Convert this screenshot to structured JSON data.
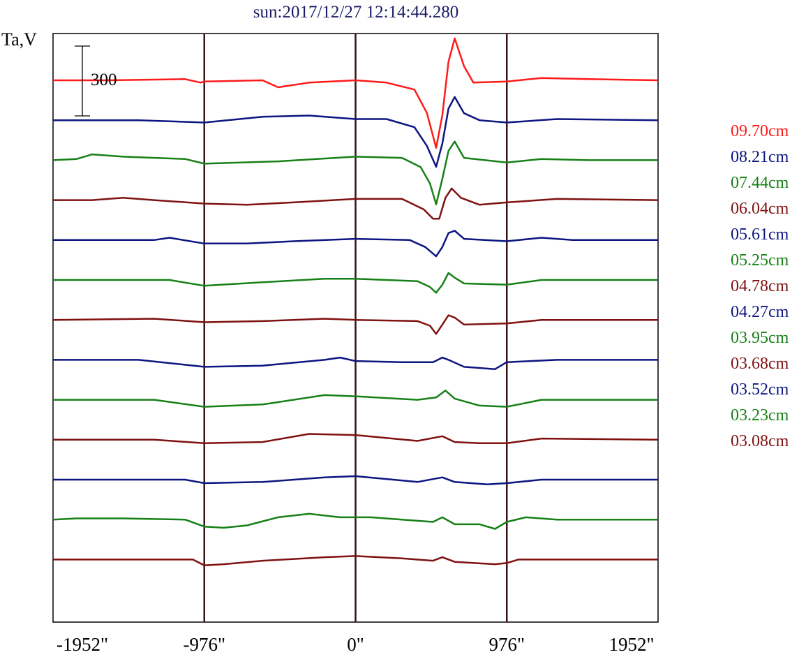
{
  "chart_data": {
    "type": "line",
    "title": "sun:2017/12/27 12:14:44.280",
    "ylabel": "Ta,V",
    "x_ticks": [
      "-1952\"",
      "-976\"",
      "0\"",
      "976\"",
      "1952\""
    ],
    "xlim": [
      -1952,
      1952
    ],
    "vertical_lines_at": [
      -976,
      0,
      976
    ],
    "scale_bar_label": "300",
    "scale_bar_value": 300,
    "series": [
      {
        "name": "09.70cm",
        "color": "#ff1a1a",
        "values": [
          {
            "x": -1952,
            "y": 0
          },
          {
            "x": -1600,
            "y": 0
          },
          {
            "x": -1100,
            "y": 5
          },
          {
            "x": -1000,
            "y": -10
          },
          {
            "x": -976,
            "y": -5
          },
          {
            "x": -600,
            "y": 0
          },
          {
            "x": -500,
            "y": -30
          },
          {
            "x": -300,
            "y": -10
          },
          {
            "x": 0,
            "y": 0
          },
          {
            "x": 200,
            "y": -10
          },
          {
            "x": 380,
            "y": -40
          },
          {
            "x": 460,
            "y": -140
          },
          {
            "x": 520,
            "y": -290
          },
          {
            "x": 560,
            "y": -150
          },
          {
            "x": 600,
            "y": 80
          },
          {
            "x": 640,
            "y": 180
          },
          {
            "x": 700,
            "y": 60
          },
          {
            "x": 760,
            "y": -10
          },
          {
            "x": 976,
            "y": -5
          },
          {
            "x": 1200,
            "y": 10
          },
          {
            "x": 1500,
            "y": 5
          },
          {
            "x": 1952,
            "y": 0
          }
        ]
      },
      {
        "name": "08.21cm",
        "color": "#0d1580",
        "values": [
          {
            "x": -1952,
            "y": 0
          },
          {
            "x": -1400,
            "y": 0
          },
          {
            "x": -976,
            "y": -10
          },
          {
            "x": -600,
            "y": 15
          },
          {
            "x": -300,
            "y": 20
          },
          {
            "x": 0,
            "y": 5
          },
          {
            "x": 200,
            "y": 5
          },
          {
            "x": 380,
            "y": -30
          },
          {
            "x": 460,
            "y": -110
          },
          {
            "x": 520,
            "y": -200
          },
          {
            "x": 560,
            "y": -100
          },
          {
            "x": 600,
            "y": 50
          },
          {
            "x": 640,
            "y": 100
          },
          {
            "x": 700,
            "y": 30
          },
          {
            "x": 800,
            "y": 0
          },
          {
            "x": 976,
            "y": -10
          },
          {
            "x": 1300,
            "y": 5
          },
          {
            "x": 1952,
            "y": 0
          }
        ]
      },
      {
        "name": "07.44cm",
        "color": "#178017",
        "values": [
          {
            "x": -1952,
            "y": 0
          },
          {
            "x": -1800,
            "y": 5
          },
          {
            "x": -1700,
            "y": 25
          },
          {
            "x": -1500,
            "y": 15
          },
          {
            "x": -1100,
            "y": 5
          },
          {
            "x": -976,
            "y": -15
          },
          {
            "x": -500,
            "y": -5
          },
          {
            "x": 0,
            "y": 15
          },
          {
            "x": 300,
            "y": 10
          },
          {
            "x": 420,
            "y": -30
          },
          {
            "x": 480,
            "y": -100
          },
          {
            "x": 520,
            "y": -190
          },
          {
            "x": 560,
            "y": -80
          },
          {
            "x": 600,
            "y": 40
          },
          {
            "x": 640,
            "y": 80
          },
          {
            "x": 700,
            "y": 10
          },
          {
            "x": 976,
            "y": -10
          },
          {
            "x": 1200,
            "y": 5
          },
          {
            "x": 1500,
            "y": 0
          },
          {
            "x": 1952,
            "y": 0
          }
        ]
      },
      {
        "name": "06.04cm",
        "color": "#7f1111",
        "values": [
          {
            "x": -1952,
            "y": 0
          },
          {
            "x": -1700,
            "y": 0
          },
          {
            "x": -1500,
            "y": 10
          },
          {
            "x": -1300,
            "y": 0
          },
          {
            "x": -976,
            "y": -15
          },
          {
            "x": -700,
            "y": -20
          },
          {
            "x": -400,
            "y": -10
          },
          {
            "x": 0,
            "y": 5
          },
          {
            "x": 300,
            "y": 5
          },
          {
            "x": 440,
            "y": -40
          },
          {
            "x": 500,
            "y": -80
          },
          {
            "x": 540,
            "y": -80
          },
          {
            "x": 580,
            "y": 10
          },
          {
            "x": 620,
            "y": 50
          },
          {
            "x": 680,
            "y": 10
          },
          {
            "x": 800,
            "y": -20
          },
          {
            "x": 976,
            "y": -10
          },
          {
            "x": 1300,
            "y": 5
          },
          {
            "x": 1952,
            "y": 0
          }
        ]
      },
      {
        "name": "05.61cm",
        "color": "#0d1580",
        "values": [
          {
            "x": -1952,
            "y": 0
          },
          {
            "x": -1300,
            "y": 0
          },
          {
            "x": -1200,
            "y": 10
          },
          {
            "x": -976,
            "y": -15
          },
          {
            "x": -700,
            "y": -15
          },
          {
            "x": -400,
            "y": -5
          },
          {
            "x": 0,
            "y": 5
          },
          {
            "x": 350,
            "y": 0
          },
          {
            "x": 450,
            "y": -30
          },
          {
            "x": 520,
            "y": -70
          },
          {
            "x": 560,
            "y": -30
          },
          {
            "x": 600,
            "y": 30
          },
          {
            "x": 640,
            "y": 40
          },
          {
            "x": 700,
            "y": 5
          },
          {
            "x": 976,
            "y": -5
          },
          {
            "x": 1200,
            "y": 10
          },
          {
            "x": 1400,
            "y": 0
          },
          {
            "x": 1952,
            "y": 0
          }
        ]
      },
      {
        "name": "05.25cm",
        "color": "#178017",
        "values": [
          {
            "x": -1952,
            "y": 0
          },
          {
            "x": -1200,
            "y": 0
          },
          {
            "x": -976,
            "y": -25
          },
          {
            "x": -600,
            "y": -10
          },
          {
            "x": -200,
            "y": 5
          },
          {
            "x": 0,
            "y": 5
          },
          {
            "x": 400,
            "y": -5
          },
          {
            "x": 480,
            "y": -30
          },
          {
            "x": 520,
            "y": -55
          },
          {
            "x": 560,
            "y": -20
          },
          {
            "x": 600,
            "y": 30
          },
          {
            "x": 640,
            "y": 10
          },
          {
            "x": 700,
            "y": -15
          },
          {
            "x": 976,
            "y": -20
          },
          {
            "x": 1200,
            "y": 0
          },
          {
            "x": 1952,
            "y": 0
          }
        ]
      },
      {
        "name": "04.78cm",
        "color": "#7f1111",
        "values": [
          {
            "x": -1952,
            "y": 0
          },
          {
            "x": -1300,
            "y": 5
          },
          {
            "x": -976,
            "y": -10
          },
          {
            "x": -600,
            "y": -5
          },
          {
            "x": -200,
            "y": 5
          },
          {
            "x": 0,
            "y": 0
          },
          {
            "x": 400,
            "y": -5
          },
          {
            "x": 480,
            "y": -25
          },
          {
            "x": 520,
            "y": -60
          },
          {
            "x": 560,
            "y": -20
          },
          {
            "x": 600,
            "y": 20
          },
          {
            "x": 640,
            "y": 10
          },
          {
            "x": 700,
            "y": -20
          },
          {
            "x": 976,
            "y": -15
          },
          {
            "x": 1200,
            "y": 0
          },
          {
            "x": 1952,
            "y": 0
          }
        ]
      },
      {
        "name": "04.27cm",
        "color": "#0d1580",
        "values": [
          {
            "x": -1952,
            "y": 0
          },
          {
            "x": -1400,
            "y": 0
          },
          {
            "x": -976,
            "y": -30
          },
          {
            "x": -600,
            "y": -25
          },
          {
            "x": -200,
            "y": 0
          },
          {
            "x": -100,
            "y": 10
          },
          {
            "x": 0,
            "y": -5
          },
          {
            "x": 300,
            "y": -10
          },
          {
            "x": 500,
            "y": -10
          },
          {
            "x": 560,
            "y": 10
          },
          {
            "x": 600,
            "y": 0
          },
          {
            "x": 700,
            "y": -30
          },
          {
            "x": 900,
            "y": -40
          },
          {
            "x": 976,
            "y": -10
          },
          {
            "x": 1300,
            "y": 0
          },
          {
            "x": 1952,
            "y": 0
          }
        ]
      },
      {
        "name": "03.95cm",
        "color": "#178017",
        "values": [
          {
            "x": -1952,
            "y": 0
          },
          {
            "x": -1300,
            "y": 0
          },
          {
            "x": -976,
            "y": -30
          },
          {
            "x": -600,
            "y": -20
          },
          {
            "x": -200,
            "y": 20
          },
          {
            "x": 0,
            "y": 15
          },
          {
            "x": 400,
            "y": 0
          },
          {
            "x": 520,
            "y": 10
          },
          {
            "x": 580,
            "y": 40
          },
          {
            "x": 640,
            "y": 5
          },
          {
            "x": 800,
            "y": -25
          },
          {
            "x": 976,
            "y": -30
          },
          {
            "x": 1200,
            "y": 0
          },
          {
            "x": 1952,
            "y": 0
          }
        ]
      },
      {
        "name": "03.68cm",
        "color": "#7f1111",
        "values": [
          {
            "x": -1952,
            "y": 0
          },
          {
            "x": -1300,
            "y": 0
          },
          {
            "x": -976,
            "y": -15
          },
          {
            "x": -600,
            "y": -10
          },
          {
            "x": -300,
            "y": 25
          },
          {
            "x": 0,
            "y": 20
          },
          {
            "x": 400,
            "y": -5
          },
          {
            "x": 560,
            "y": 15
          },
          {
            "x": 640,
            "y": -10
          },
          {
            "x": 800,
            "y": -15
          },
          {
            "x": 976,
            "y": -15
          },
          {
            "x": 1200,
            "y": 5
          },
          {
            "x": 1952,
            "y": 0
          }
        ]
      },
      {
        "name": "03.52cm",
        "color": "#0d1580",
        "values": [
          {
            "x": -1952,
            "y": 0
          },
          {
            "x": -1100,
            "y": 0
          },
          {
            "x": -976,
            "y": -15
          },
          {
            "x": -600,
            "y": -10
          },
          {
            "x": -200,
            "y": 10
          },
          {
            "x": 0,
            "y": 15
          },
          {
            "x": 400,
            "y": -10
          },
          {
            "x": 560,
            "y": 10
          },
          {
            "x": 640,
            "y": -10
          },
          {
            "x": 850,
            "y": -20
          },
          {
            "x": 976,
            "y": -15
          },
          {
            "x": 1200,
            "y": 0
          },
          {
            "x": 1952,
            "y": 0
          }
        ]
      },
      {
        "name": "03.23cm",
        "color": "#178017",
        "values": [
          {
            "x": -1952,
            "y": 0
          },
          {
            "x": -1800,
            "y": 5
          },
          {
            "x": -1500,
            "y": 5
          },
          {
            "x": -1100,
            "y": 0
          },
          {
            "x": -976,
            "y": -30
          },
          {
            "x": -850,
            "y": -35
          },
          {
            "x": -700,
            "y": -25
          },
          {
            "x": -500,
            "y": 10
          },
          {
            "x": -300,
            "y": 25
          },
          {
            "x": -100,
            "y": 10
          },
          {
            "x": 100,
            "y": 10
          },
          {
            "x": 300,
            "y": 0
          },
          {
            "x": 500,
            "y": -10
          },
          {
            "x": 560,
            "y": 10
          },
          {
            "x": 640,
            "y": -20
          },
          {
            "x": 800,
            "y": -20
          },
          {
            "x": 900,
            "y": -40
          },
          {
            "x": 976,
            "y": -10
          },
          {
            "x": 1100,
            "y": 10
          },
          {
            "x": 1300,
            "y": 0
          },
          {
            "x": 1952,
            "y": 0
          }
        ]
      },
      {
        "name": "03.08cm",
        "color": "#7f1111",
        "values": [
          {
            "x": -1952,
            "y": 0
          },
          {
            "x": -1050,
            "y": 0
          },
          {
            "x": -976,
            "y": -25
          },
          {
            "x": -850,
            "y": -20
          },
          {
            "x": -600,
            "y": -5
          },
          {
            "x": -200,
            "y": 10
          },
          {
            "x": 0,
            "y": 15
          },
          {
            "x": 300,
            "y": 5
          },
          {
            "x": 500,
            "y": -5
          },
          {
            "x": 560,
            "y": 10
          },
          {
            "x": 640,
            "y": -10
          },
          {
            "x": 900,
            "y": -20
          },
          {
            "x": 976,
            "y": -15
          },
          {
            "x": 1050,
            "y": 0
          },
          {
            "x": 1952,
            "y": 0
          }
        ]
      }
    ]
  }
}
